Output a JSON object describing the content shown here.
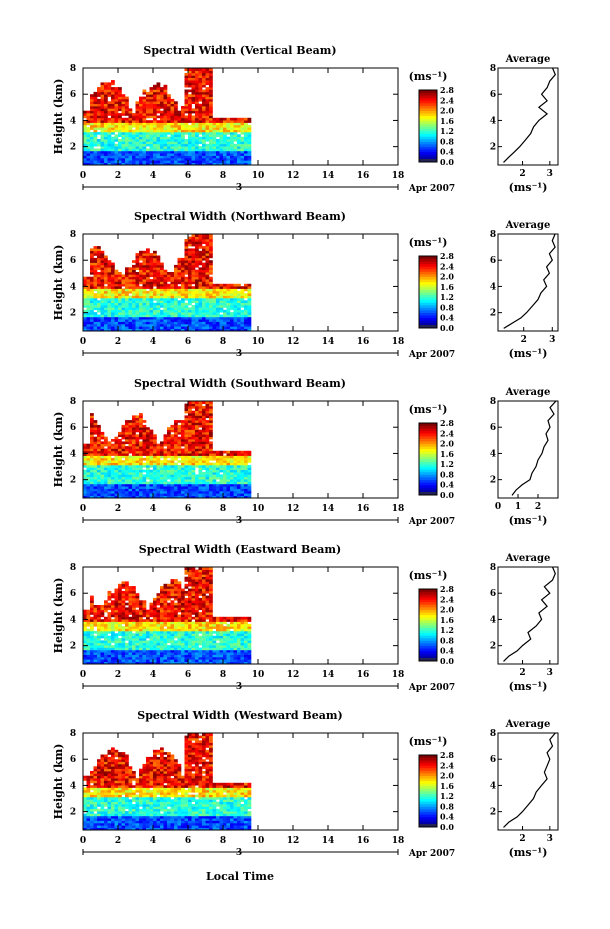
{
  "figure": {
    "x_label": "Local Time",
    "date_label": "Apr 2007",
    "day_label": "3",
    "height_label": "Height (km)",
    "average_title": "Average",
    "unit_label": "(ms⁻¹)"
  },
  "chart_data": [
    {
      "type": "heatmap",
      "title": "Spectral Width (Vertical Beam)",
      "xlabel": "Local Time",
      "ylabel": "Height (km)",
      "xlim": [
        0,
        18
      ],
      "ylim": [
        0.6,
        8
      ],
      "x_ticks": [
        "0",
        "2",
        "4",
        "6",
        "8",
        "10",
        "12",
        "14",
        "16",
        "18"
      ],
      "y_ticks": [
        "2",
        "4",
        "6",
        "8"
      ],
      "colorbar": {
        "label": "(ms⁻¹)",
        "range": [
          0,
          2.8
        ],
        "ticks": [
          "0.0",
          "0.4",
          "0.8",
          "1.2",
          "1.6",
          "2.0",
          "2.4",
          "2.8"
        ]
      },
      "data_end_hour": 9.4,
      "average_profile": {
        "title": "Average",
        "xlabel": "(ms⁻¹)",
        "x_ticks": [
          "2",
          "3"
        ],
        "xlim": [
          1.1,
          3.3
        ],
        "height": [
          0.8,
          1.2,
          1.6,
          2.0,
          2.5,
          3.0,
          3.5,
          4.0,
          4.5,
          5.0,
          5.5,
          6.0,
          6.5,
          7.0,
          7.5,
          8.0
        ],
        "width": [
          1.3,
          1.5,
          1.7,
          1.9,
          2.1,
          2.3,
          2.4,
          2.6,
          2.9,
          2.6,
          2.9,
          2.7,
          2.9,
          3.0,
          3.2,
          3.1
        ]
      }
    },
    {
      "type": "heatmap",
      "title": "Spectral Width (Northward Beam)",
      "xlabel": "Local Time",
      "ylabel": "Height (km)",
      "xlim": [
        0,
        18
      ],
      "ylim": [
        0.6,
        8
      ],
      "x_ticks": [
        "0",
        "2",
        "4",
        "6",
        "8",
        "10",
        "12",
        "14",
        "16",
        "18"
      ],
      "y_ticks": [
        "2",
        "4",
        "6",
        "8"
      ],
      "colorbar": {
        "label": "(ms⁻¹)",
        "range": [
          0,
          2.8
        ],
        "ticks": [
          "0.0",
          "0.4",
          "0.8",
          "1.2",
          "1.6",
          "2.0",
          "2.4",
          "2.8"
        ]
      },
      "data_end_hour": 9.4,
      "average_profile": {
        "title": "Average",
        "xlabel": "(ms⁻¹)",
        "x_ticks": [
          "2",
          "3"
        ],
        "xlim": [
          1.1,
          3.2
        ],
        "height": [
          0.8,
          1.2,
          1.6,
          2.0,
          2.5,
          3.0,
          3.5,
          4.0,
          4.5,
          5.0,
          5.5,
          6.0,
          6.5,
          7.0,
          7.5,
          8.0
        ],
        "width": [
          1.3,
          1.6,
          1.9,
          2.1,
          2.3,
          2.5,
          2.6,
          2.8,
          2.7,
          2.9,
          2.8,
          3.0,
          2.9,
          3.1,
          3.0,
          3.1
        ]
      }
    },
    {
      "type": "heatmap",
      "title": "Spectral Width (Southward Beam)",
      "xlabel": "Local Time",
      "ylabel": "Height (km)",
      "xlim": [
        0,
        18
      ],
      "ylim": [
        0.6,
        8
      ],
      "x_ticks": [
        "0",
        "2",
        "4",
        "6",
        "8",
        "10",
        "12",
        "14",
        "16",
        "18"
      ],
      "y_ticks": [
        "2",
        "4",
        "6",
        "8"
      ],
      "colorbar": {
        "label": "(ms⁻¹)",
        "range": [
          0,
          2.8
        ],
        "ticks": [
          "0.0",
          "0.4",
          "0.8",
          "1.2",
          "1.6",
          "2.0",
          "2.4",
          "2.8"
        ]
      },
      "data_end_hour": 9.4,
      "average_profile": {
        "title": "Average",
        "xlabel": "(ms⁻¹)",
        "x_ticks": [
          "0",
          "1",
          "2"
        ],
        "xlim": [
          0,
          3.0
        ],
        "height": [
          0.8,
          1.2,
          1.6,
          2.0,
          2.5,
          3.0,
          3.5,
          4.0,
          4.5,
          5.0,
          5.5,
          6.0,
          6.5,
          7.0,
          7.5,
          8.0
        ],
        "width": [
          0.7,
          0.9,
          1.2,
          1.6,
          1.7,
          1.9,
          2.0,
          2.2,
          2.3,
          2.5,
          2.4,
          2.6,
          2.5,
          2.8,
          2.6,
          2.9
        ]
      }
    },
    {
      "type": "heatmap",
      "title": "Spectral Width (Eastward Beam)",
      "xlabel": "Local Time",
      "ylabel": "Height (km)",
      "xlim": [
        0,
        18
      ],
      "ylim": [
        0.6,
        8
      ],
      "x_ticks": [
        "0",
        "2",
        "4",
        "6",
        "8",
        "10",
        "12",
        "14",
        "16",
        "18"
      ],
      "y_ticks": [
        "2",
        "4",
        "6",
        "8"
      ],
      "colorbar": {
        "label": "(ms⁻¹)",
        "range": [
          0,
          2.8
        ],
        "ticks": [
          "0.0",
          "0.4",
          "0.8",
          "1.2",
          "1.6",
          "2.0",
          "2.4",
          "2.8"
        ]
      },
      "data_end_hour": 9.4,
      "average_profile": {
        "title": "Average",
        "xlabel": "(ms⁻¹)",
        "x_ticks": [
          "2",
          "3"
        ],
        "xlim": [
          1.1,
          3.3
        ],
        "height": [
          0.8,
          1.2,
          1.6,
          2.0,
          2.5,
          3.0,
          3.5,
          4.0,
          4.5,
          5.0,
          5.5,
          6.0,
          6.5,
          7.0,
          7.5,
          8.0
        ],
        "width": [
          1.3,
          1.5,
          1.8,
          2.0,
          2.3,
          2.2,
          2.5,
          2.7,
          2.6,
          2.9,
          2.7,
          3.0,
          2.8,
          3.1,
          3.2,
          3.1
        ]
      }
    },
    {
      "type": "heatmap",
      "title": "Spectral Width (Westward Beam)",
      "xlabel": "Local Time",
      "ylabel": "Height (km)",
      "xlim": [
        0,
        18
      ],
      "ylim": [
        0.6,
        8
      ],
      "x_ticks": [
        "0",
        "2",
        "4",
        "6",
        "8",
        "10",
        "12",
        "14",
        "16",
        "18"
      ],
      "y_ticks": [
        "2",
        "4",
        "6",
        "8"
      ],
      "colorbar": {
        "label": "(ms⁻¹)",
        "range": [
          0,
          2.8
        ],
        "ticks": [
          "0.0",
          "0.4",
          "0.8",
          "1.2",
          "1.6",
          "2.0",
          "2.4",
          "2.8"
        ]
      },
      "data_end_hour": 9.4,
      "average_profile": {
        "title": "Average",
        "xlabel": "(ms⁻¹)",
        "x_ticks": [
          "2",
          "3"
        ],
        "xlim": [
          1.1,
          3.3
        ],
        "height": [
          0.8,
          1.2,
          1.6,
          2.0,
          2.5,
          3.0,
          3.5,
          4.0,
          4.5,
          5.0,
          5.5,
          6.0,
          6.5,
          7.0,
          7.5,
          8.0
        ],
        "width": [
          1.3,
          1.5,
          1.8,
          2.0,
          2.2,
          2.4,
          2.5,
          2.7,
          2.9,
          2.8,
          2.9,
          3.0,
          2.9,
          3.1,
          3.0,
          3.2
        ]
      }
    }
  ]
}
